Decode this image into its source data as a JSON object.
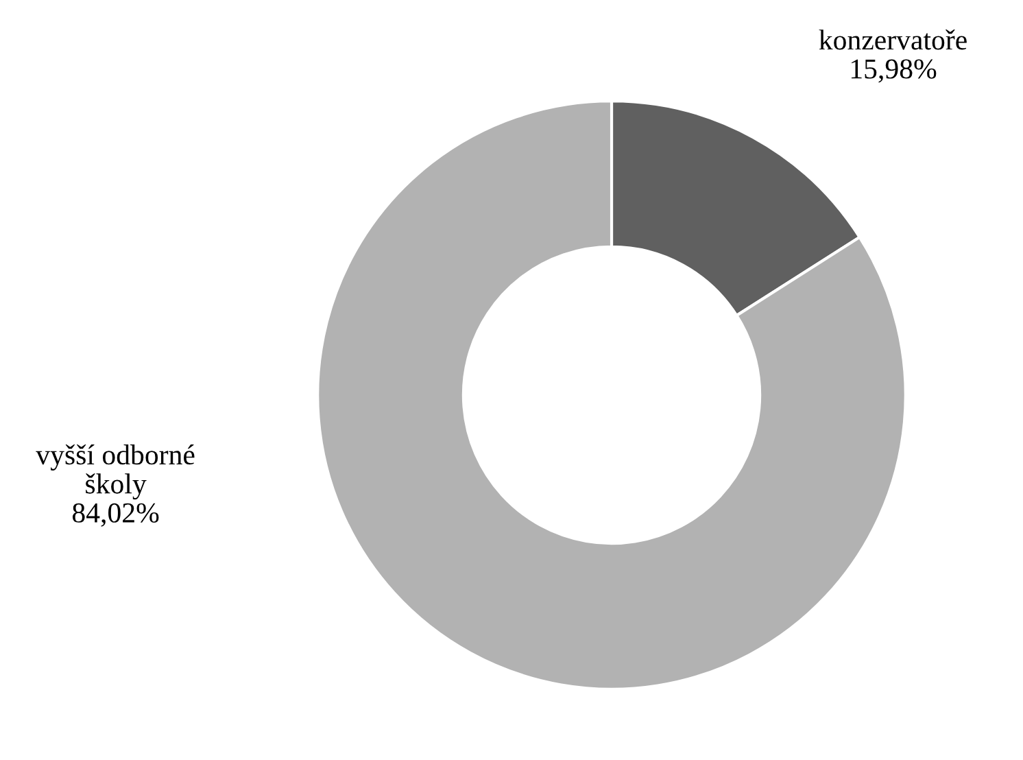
{
  "chart_data": {
    "type": "donut",
    "categories": [
      "konzervatoře",
      "vyšší odborné\nškoly"
    ],
    "values": [
      15.98,
      84.02
    ],
    "value_labels": [
      "15,98%",
      "84,02%"
    ],
    "colors": [
      "#606060",
      "#b2b2b2"
    ],
    "legend": false
  }
}
